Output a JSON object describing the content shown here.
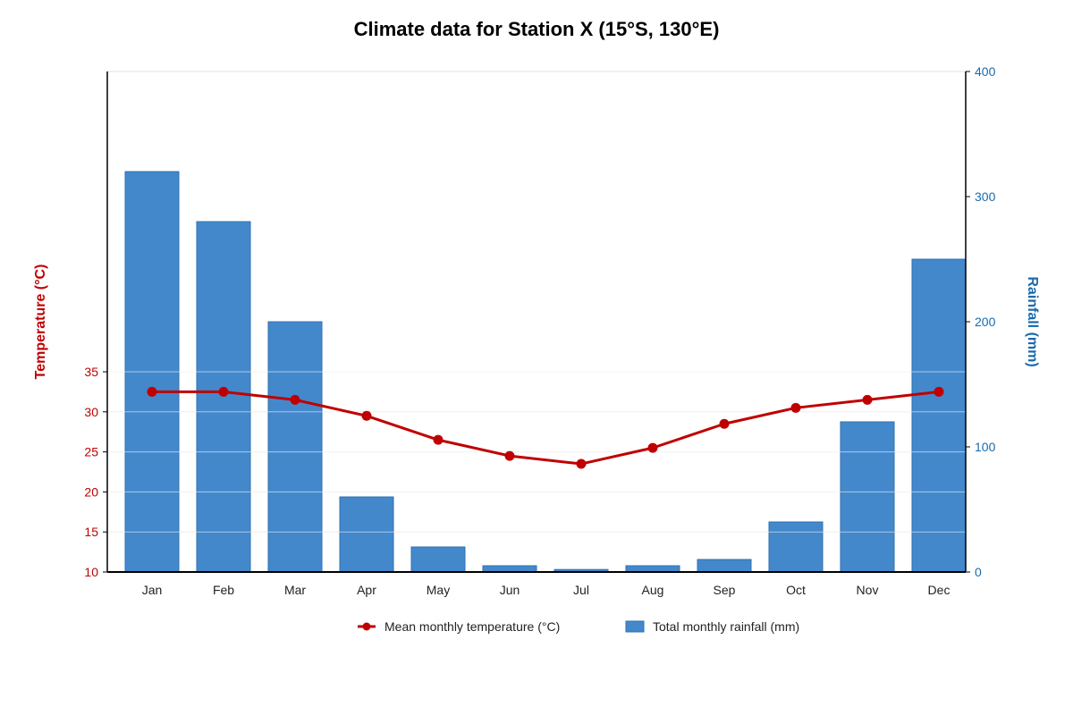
{
  "chart_data": {
    "type": "bar+line",
    "title": "Climate data for Station X (15°S, 130°E)",
    "categories": [
      "Jan",
      "Feb",
      "Mar",
      "Apr",
      "May",
      "Jun",
      "Jul",
      "Aug",
      "Sep",
      "Oct",
      "Nov",
      "Dec"
    ],
    "series": [
      {
        "name": "Mean monthly temperature (°C)",
        "type": "line",
        "axis": "left",
        "color": "#c00000",
        "values": [
          32.5,
          32.5,
          31.5,
          29.5,
          26.5,
          24.5,
          23.5,
          25.5,
          28.5,
          30.5,
          31.5,
          32.5
        ]
      },
      {
        "name": "Total monthly rainfall (mm)",
        "type": "bar",
        "axis": "right",
        "color": "#4488cc",
        "values": [
          320,
          280,
          200,
          60,
          20,
          5,
          2,
          5,
          10,
          40,
          120,
          250
        ]
      }
    ],
    "y_left": {
      "label": "Temperature (°C)",
      "ticks": [
        10,
        15,
        20,
        25,
        30,
        35
      ],
      "range": [
        10,
        35
      ],
      "color": "#c00000"
    },
    "y_right": {
      "label": "Rainfall (mm)",
      "ticks": [
        0,
        100,
        200,
        300,
        400
      ],
      "range": [
        0,
        400
      ],
      "color": "#1a6aab"
    },
    "legend": {
      "position": "bottom-center"
    },
    "grid": true
  }
}
